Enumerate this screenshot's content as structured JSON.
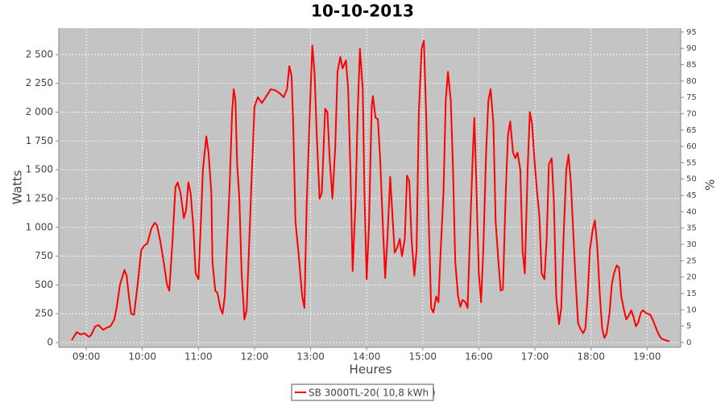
{
  "chart_data": {
    "type": "line",
    "title": "10-10-2013",
    "x_label": "Heures",
    "y_label": "Watts",
    "y2_label": "%",
    "xlim": [
      8.51,
      19.6
    ],
    "xticks": [
      {
        "value": 9,
        "label": "09:00"
      },
      {
        "value": 10,
        "label": "10:00"
      },
      {
        "value": 11,
        "label": "11:00"
      },
      {
        "value": 12,
        "label": "12:00"
      },
      {
        "value": 13,
        "label": "13:00"
      },
      {
        "value": 14,
        "label": "14:00"
      },
      {
        "value": 15,
        "label": "15:00"
      },
      {
        "value": 16,
        "label": "16:00"
      },
      {
        "value": 17,
        "label": "17:00"
      },
      {
        "value": 18,
        "label": "18:00"
      },
      {
        "value": 19,
        "label": "19:00"
      }
    ],
    "ylim": [
      -42,
      2730
    ],
    "yticks": [
      0,
      250,
      500,
      750,
      {
        "value": 1000,
        "label": "1 000"
      },
      {
        "value": 1250,
        "label": "1 250"
      },
      {
        "value": 1500,
        "label": "1 500"
      },
      {
        "value": 1750,
        "label": "1 750"
      },
      {
        "value": 2000,
        "label": "2 000"
      },
      {
        "value": 2250,
        "label": "2 250"
      },
      {
        "value": 2500,
        "label": "2 500"
      }
    ],
    "y2lim": [
      -1.5,
      96.2
    ],
    "y2ticks": [
      0,
      5,
      10,
      15,
      20,
      25,
      30,
      35,
      40,
      45,
      50,
      55,
      60,
      65,
      70,
      75,
      80,
      85,
      90,
      95
    ],
    "grid": true,
    "legend": "bottom",
    "x": [
      8.74,
      8.83,
      8.9,
      8.97,
      9.04,
      9.08,
      9.16,
      9.22,
      9.3,
      9.37,
      9.43,
      9.5,
      9.54,
      9.6,
      9.68,
      9.72,
      9.76,
      9.8,
      9.85,
      9.91,
      9.98,
      10.03,
      10.09,
      10.16,
      10.22,
      10.26,
      10.32,
      10.38,
      10.44,
      10.48,
      10.54,
      10.59,
      10.63,
      10.68,
      10.74,
      10.78,
      10.82,
      10.86,
      10.91,
      10.95,
      11.0,
      11.04,
      11.08,
      11.14,
      11.18,
      11.23,
      11.25,
      11.3,
      11.34,
      11.39,
      11.43,
      11.47,
      11.51,
      11.56,
      11.6,
      11.63,
      11.66,
      11.69,
      11.73,
      11.77,
      11.82,
      11.86,
      11.9,
      11.95,
      12.0,
      12.06,
      12.13,
      12.2,
      12.29,
      12.37,
      12.46,
      12.52,
      12.58,
      12.62,
      12.66,
      12.69,
      12.73,
      12.79,
      12.85,
      12.89,
      12.93,
      12.99,
      13.03,
      13.07,
      13.11,
      13.16,
      13.2,
      13.26,
      13.3,
      13.34,
      13.39,
      13.44,
      13.48,
      13.53,
      13.57,
      13.63,
      13.67,
      13.71,
      13.75,
      13.8,
      13.84,
      13.88,
      13.93,
      13.96,
      14.0,
      14.04,
      14.09,
      14.11,
      14.16,
      14.2,
      14.24,
      14.29,
      14.33,
      14.37,
      14.42,
      14.46,
      14.5,
      14.55,
      14.59,
      14.63,
      14.68,
      14.72,
      14.76,
      14.8,
      14.85,
      14.89,
      14.93,
      14.98,
      15.02,
      15.06,
      15.11,
      15.15,
      15.19,
      15.24,
      15.28,
      15.32,
      15.37,
      15.41,
      15.45,
      15.5,
      15.54,
      15.58,
      15.63,
      15.67,
      15.71,
      15.76,
      15.8,
      15.84,
      15.89,
      15.92,
      15.96,
      16.0,
      16.04,
      16.08,
      16.13,
      16.17,
      16.21,
      16.26,
      16.3,
      16.35,
      16.39,
      16.43,
      16.48,
      16.52,
      16.56,
      16.61,
      16.65,
      16.69,
      16.74,
      16.78,
      16.82,
      16.87,
      16.91,
      16.95,
      16.99,
      17.04,
      17.08,
      17.12,
      17.17,
      17.21,
      17.25,
      17.3,
      17.34,
      17.38,
      17.43,
      17.47,
      17.51,
      17.56,
      17.6,
      17.64,
      17.69,
      17.73,
      17.77,
      17.81,
      17.86,
      17.9,
      17.94,
      17.98,
      18.03,
      18.07,
      18.11,
      18.16,
      18.2,
      18.24,
      18.28,
      18.33,
      18.37,
      18.41,
      18.46,
      18.5,
      18.54,
      18.59,
      18.63,
      18.67,
      18.72,
      18.76,
      18.8,
      18.84,
      18.89,
      18.93,
      18.97,
      19.01,
      19.06,
      19.1,
      19.14,
      19.19,
      19.23,
      19.27,
      19.33,
      19.4
    ],
    "series": [
      {
        "name": "SB 3000TL-20( 10,8 kWh )",
        "color": "#ff0000",
        "values": [
          20,
          90,
          70,
          80,
          50,
          60,
          140,
          150,
          110,
          130,
          140,
          200,
          300,
          500,
          630,
          580,
          400,
          250,
          240,
          480,
          800,
          840,
          860,
          990,
          1040,
          1020,
          880,
          700,
          500,
          450,
          900,
          1350,
          1390,
          1300,
          1080,
          1150,
          1390,
          1300,
          1000,
          600,
          550,
          1000,
          1500,
          1790,
          1650,
          1300,
          700,
          450,
          430,
          300,
          250,
          400,
          850,
          1400,
          2000,
          2200,
          2100,
          1550,
          1250,
          600,
          200,
          280,
          800,
          1450,
          2050,
          2130,
          2080,
          2130,
          2200,
          2190,
          2160,
          2130,
          2200,
          2400,
          2320,
          1900,
          1050,
          750,
          400,
          300,
          1200,
          2050,
          2580,
          2350,
          1800,
          1250,
          1300,
          2030,
          2000,
          1600,
          1250,
          1700,
          2350,
          2480,
          2380,
          2450,
          2200,
          1500,
          620,
          1200,
          2000,
          2550,
          2200,
          1300,
          550,
          1000,
          2050,
          2140,
          1950,
          1940,
          1600,
          1000,
          560,
          900,
          1440,
          1100,
          780,
          830,
          900,
          750,
          900,
          1450,
          1400,
          900,
          580,
          800,
          2000,
          2550,
          2620,
          2000,
          1000,
          300,
          260,
          400,
          350,
          800,
          1300,
          2100,
          2350,
          2100,
          1500,
          700,
          400,
          310,
          370,
          350,
          300,
          900,
          1600,
          1950,
          1300,
          600,
          350,
          800,
          1650,
          2100,
          2200,
          1900,
          1050,
          700,
          450,
          460,
          1300,
          1800,
          1920,
          1650,
          1600,
          1650,
          1500,
          800,
          600,
          1500,
          2000,
          1900,
          1600,
          1300,
          1100,
          600,
          550,
          900,
          1550,
          1600,
          1200,
          400,
          160,
          300,
          900,
          1500,
          1630,
          1400,
          900,
          500,
          170,
          120,
          80,
          120,
          400,
          800,
          980,
          1060,
          850,
          400,
          120,
          40,
          80,
          250,
          500,
          600,
          670,
          650,
          400,
          280,
          200,
          230,
          280,
          220,
          140,
          170,
          260,
          280,
          260,
          250,
          240,
          200,
          150,
          90,
          50,
          30,
          20,
          10
        ]
      }
    ]
  }
}
